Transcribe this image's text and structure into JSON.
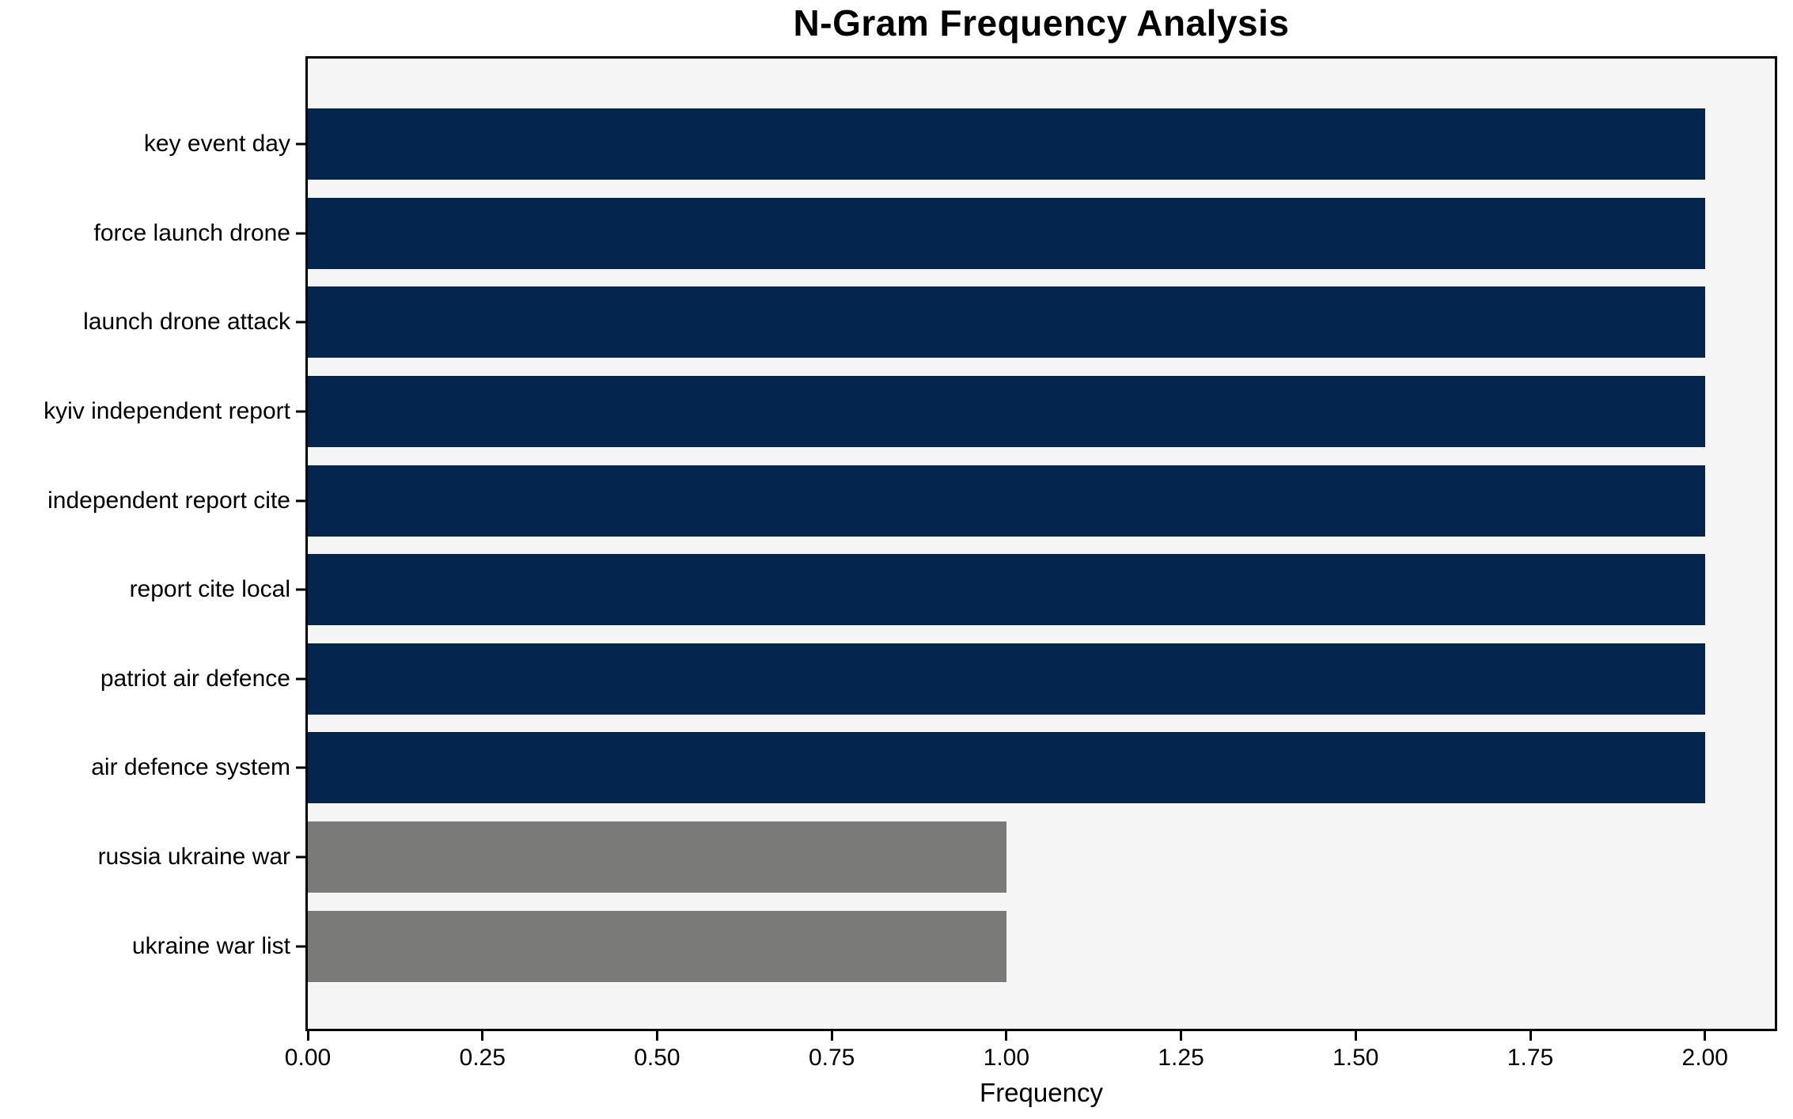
{
  "chart_data": {
    "type": "bar",
    "orientation": "horizontal",
    "title": "N-Gram Frequency Analysis",
    "xlabel": "Frequency",
    "ylabel": "",
    "categories": [
      "key event day",
      "force launch drone",
      "launch drone attack",
      "kyiv independent report",
      "independent report cite",
      "report cite local",
      "patriot air defence",
      "air defence system",
      "russia ukraine war",
      "ukraine war list"
    ],
    "values": [
      2,
      2,
      2,
      2,
      2,
      2,
      2,
      2,
      1,
      1
    ],
    "bar_colors": [
      "#03254e",
      "#03254e",
      "#03254e",
      "#03254e",
      "#03254e",
      "#03254e",
      "#03254e",
      "#03254e",
      "#7a7a78",
      "#7a7a78"
    ],
    "xlim": [
      0,
      2.1
    ],
    "xtick_values": [
      0,
      0.25,
      0.5,
      0.75,
      1.0,
      1.25,
      1.5,
      1.75,
      2.0
    ],
    "xtick_labels": [
      "0.00",
      "0.25",
      "0.50",
      "0.75",
      "1.00",
      "1.25",
      "1.50",
      "1.75",
      "2.00"
    ],
    "grid": false,
    "legend": "none",
    "plot_background": "#f5f5f5",
    "figure_background": "#ffffff",
    "colors": {
      "frequency_2_bar": "#03254e",
      "frequency_1_bar": "#7a7a78",
      "axis_frame": "#000000"
    }
  }
}
